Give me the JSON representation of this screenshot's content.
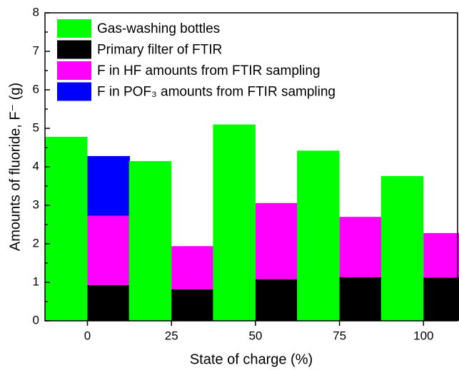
{
  "chart_data": {
    "type": "bar",
    "x_label": "State of charge (%)",
    "y_label": "Amounts of fluoride, F⁻ (g)",
    "categories": [
      "0",
      "25",
      "50",
      "75",
      "100"
    ],
    "series": [
      {
        "name": "Gas-washing bottles",
        "color": "#00ff00",
        "stack": "a",
        "values": [
          4.78,
          4.15,
          5.1,
          4.42,
          3.76
        ]
      },
      {
        "name": "Primary filter of FTIR",
        "color": "#000000",
        "stack": "b",
        "values": [
          0.93,
          0.82,
          1.08,
          1.13,
          1.12
        ]
      },
      {
        "name": "F in HF amounts from FTIR sampling",
        "color": "#ff00ff",
        "stack": "b",
        "values": [
          1.8,
          1.12,
          1.98,
          1.57,
          1.16
        ]
      },
      {
        "name": "F in POF₃ amounts from FTIR sampling",
        "color": "#0000ff",
        "stack": "b",
        "values": [
          1.55,
          null,
          null,
          null,
          null
        ]
      }
    ],
    "ylim": [
      0,
      8
    ],
    "yticks": [
      0,
      1,
      2,
      3,
      4,
      5,
      6,
      7,
      8
    ]
  }
}
